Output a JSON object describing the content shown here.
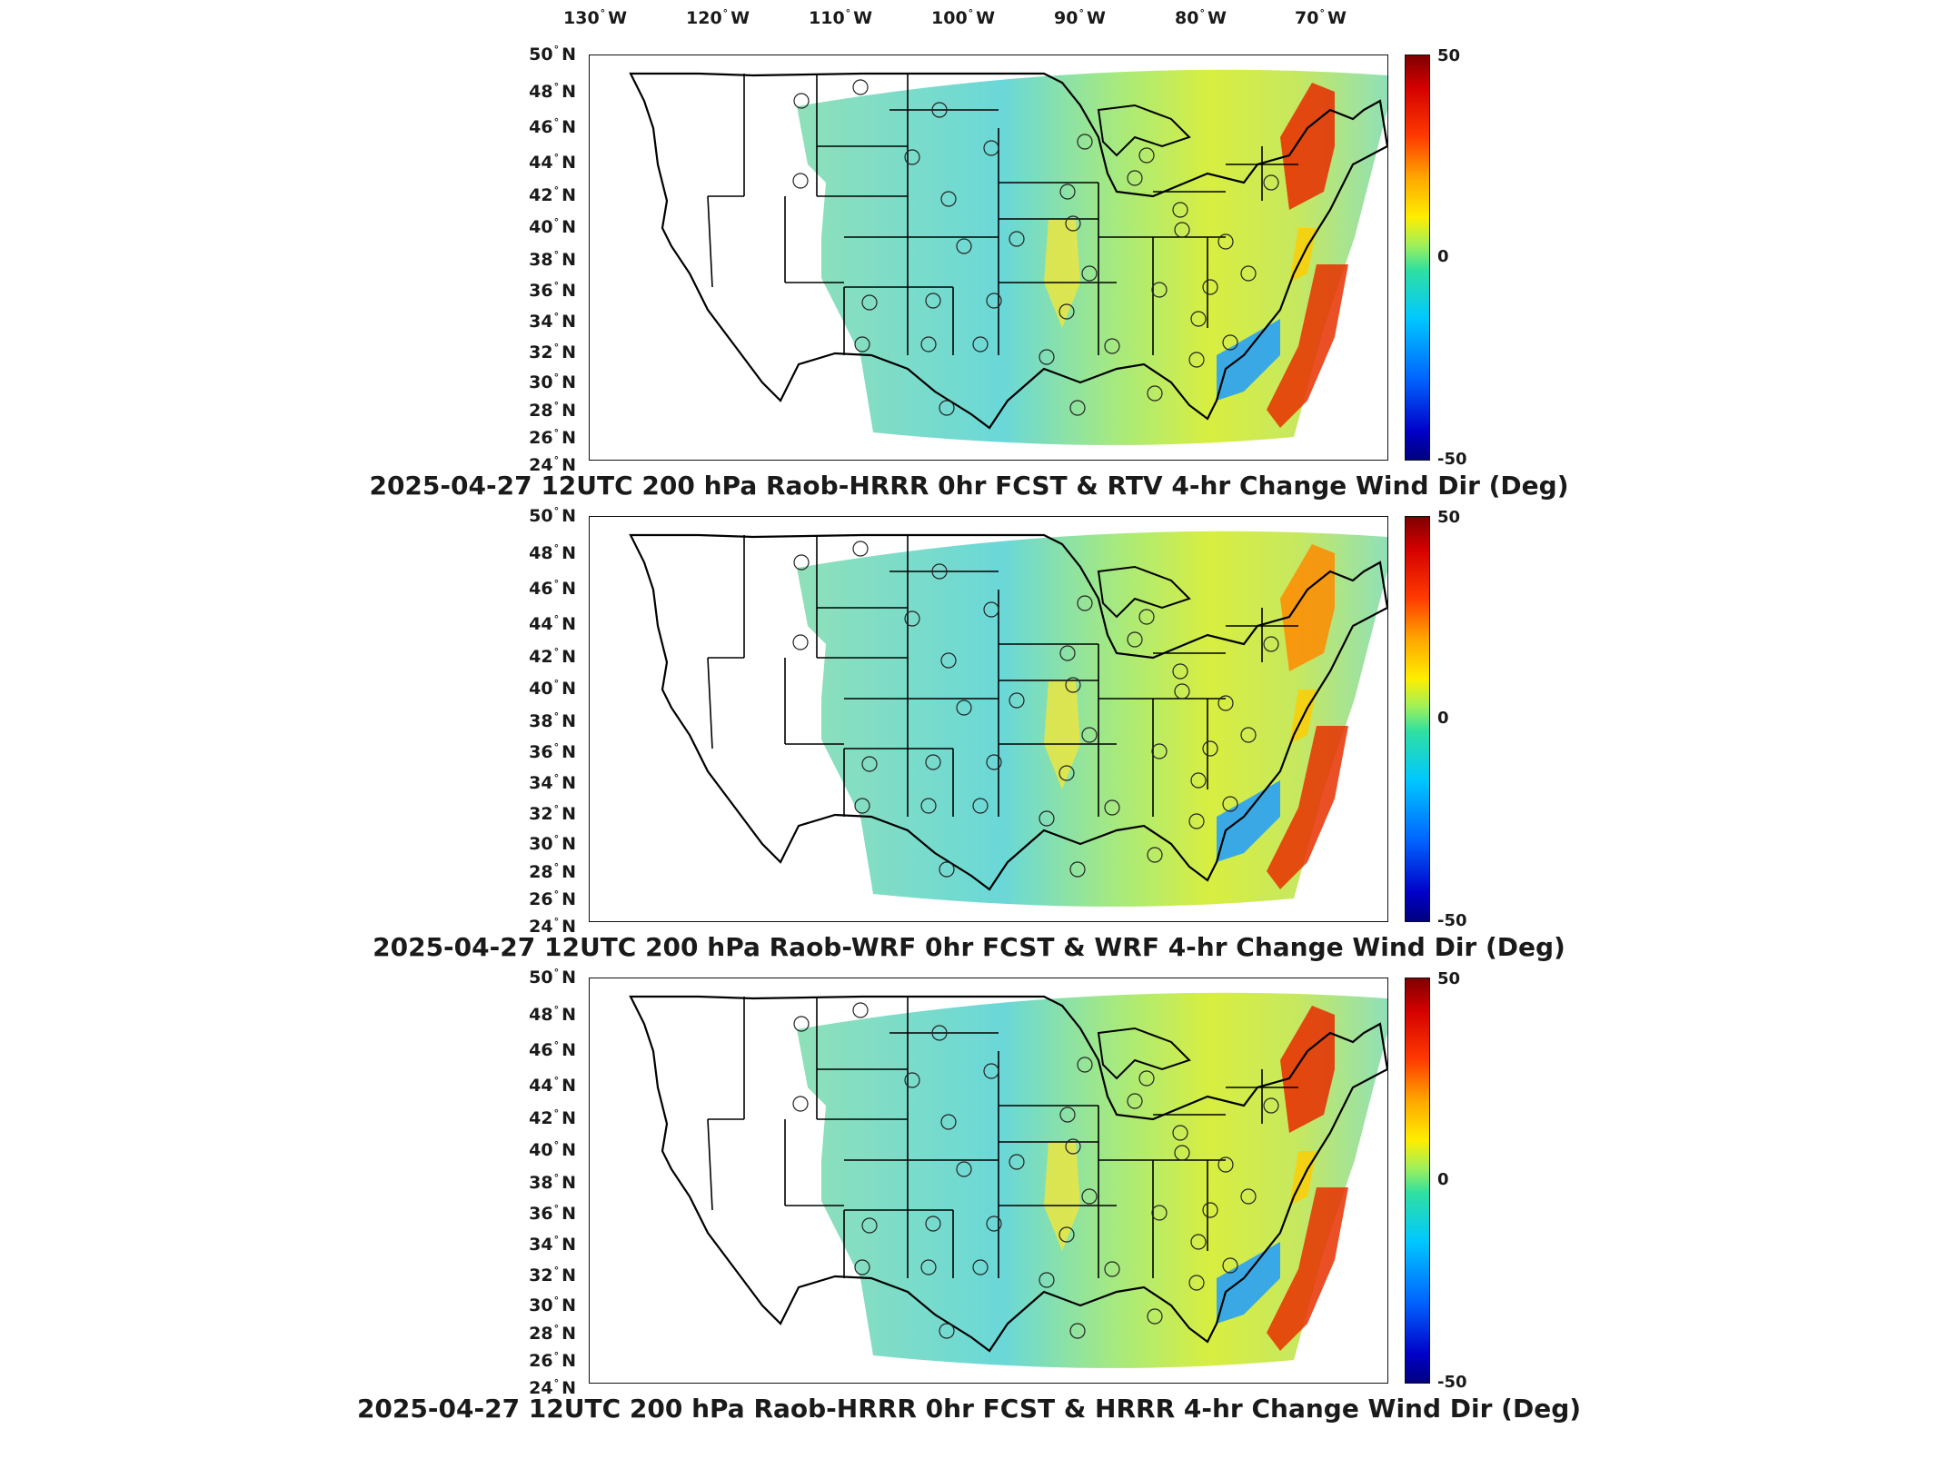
{
  "lon_labels": [
    "130",
    "120",
    "110",
    "100",
    "90",
    "80",
    "70"
  ],
  "lon_suffix": "W",
  "lat_labels": [
    "50",
    "48",
    "46",
    "44",
    "42",
    "40",
    "38",
    "36",
    "34",
    "32",
    "30",
    "28",
    "26",
    "24"
  ],
  "lat_suffix": "N",
  "degree_symbol": "°",
  "colorbar": {
    "max_label": "50",
    "mid_label": "0",
    "min_label": "-50",
    "range": [
      -50,
      50
    ]
  },
  "panels": [
    {
      "title": "2025-04-27 12UTC 200 hPa Raob-HRRR 0hr FCST & RTV 4-hr Change Wind Dir (Deg)"
    },
    {
      "title": "2025-04-27 12UTC 200 hPa Raob-WRF 0hr FCST & WRF 4-hr Change Wind Dir (Deg)"
    },
    {
      "title": "2025-04-27 12UTC 200 hPa Raob-HRRR 0hr FCST & HRRR 4-hr Change Wind Dir (Deg)"
    }
  ],
  "colors": {
    "background_field": "#8ee8a0",
    "coast": "#000000"
  }
}
